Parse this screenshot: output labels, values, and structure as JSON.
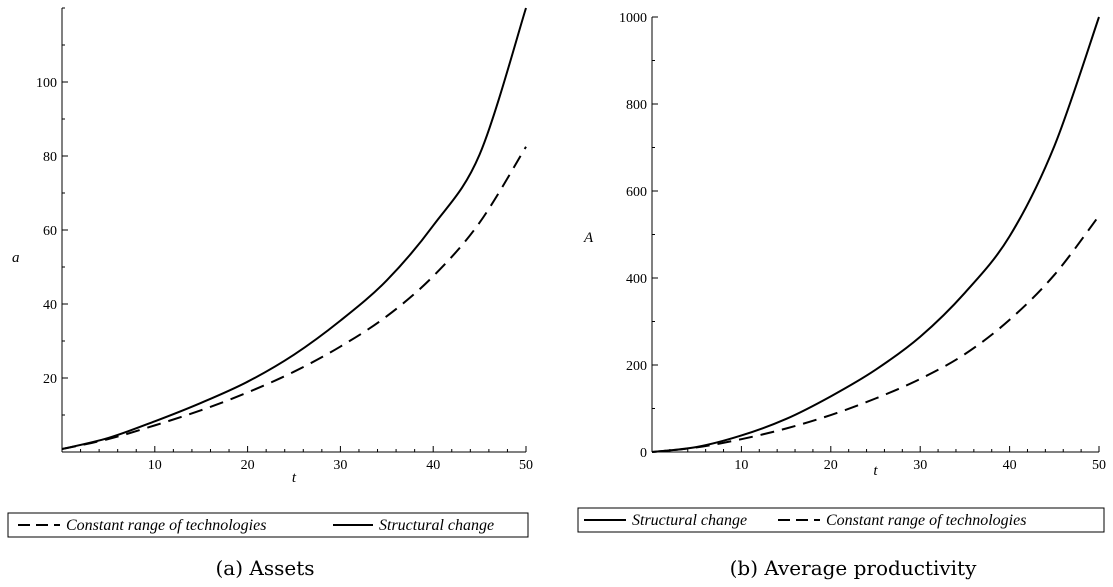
{
  "chart_data": [
    {
      "type": "line",
      "caption": "(a) Assets",
      "xlabel": "t",
      "ylabel": "a",
      "xlim": [
        0,
        50
      ],
      "ylim": [
        0,
        120
      ],
      "xticks": [
        10,
        20,
        30,
        40,
        50
      ],
      "yticks": [
        20,
        40,
        60,
        80,
        100
      ],
      "grid": false,
      "legend_placement": "bottom",
      "legend_order": [
        "Constant range of technologies",
        "Structural change"
      ],
      "series": [
        {
          "name": "Structural change",
          "style": "solid",
          "x": [
            0,
            5,
            10,
            15,
            20,
            25,
            30,
            35,
            40,
            45,
            50
          ],
          "y": [
            0.8,
            3.8,
            8.3,
            13.3,
            19,
            26.3,
            35.5,
            46.4,
            61.2,
            80.4,
            120
          ]
        },
        {
          "name": "Constant range of technologies",
          "style": "dashed",
          "x": [
            0,
            5,
            10,
            15,
            20,
            25,
            30,
            35,
            40,
            45,
            50
          ],
          "y": [
            0.8,
            3.5,
            7.2,
            11.3,
            16.1,
            21.7,
            28.5,
            36.7,
            47.5,
            62,
            82.5
          ]
        }
      ]
    },
    {
      "type": "line",
      "caption": "(b) Average productivity",
      "xlabel": "t",
      "ylabel": "A",
      "xlim": [
        0,
        50
      ],
      "ylim": [
        0,
        1000
      ],
      "xticks": [
        10,
        20,
        30,
        40,
        50
      ],
      "yticks": [
        0,
        200,
        400,
        600,
        800,
        1000
      ],
      "grid": false,
      "legend_placement": "bottom",
      "legend_order": [
        "Structural change",
        "Constant range of technologies"
      ],
      "series": [
        {
          "name": "Structural change",
          "style": "solid",
          "x": [
            0,
            5,
            10,
            15,
            20,
            25,
            30,
            35,
            40,
            45,
            50
          ],
          "y": [
            0,
            11.5,
            38,
            76,
            128,
            189,
            265,
            366,
            496,
            703,
            1000
          ]
        },
        {
          "name": "Constant range of technologies",
          "style": "dashed",
          "x": [
            0,
            5,
            10,
            15,
            20,
            25,
            30,
            35,
            40,
            45,
            50
          ],
          "y": [
            0,
            10.5,
            29.5,
            54,
            85,
            123,
            168,
            225,
            304,
            407,
            543
          ]
        }
      ]
    }
  ]
}
